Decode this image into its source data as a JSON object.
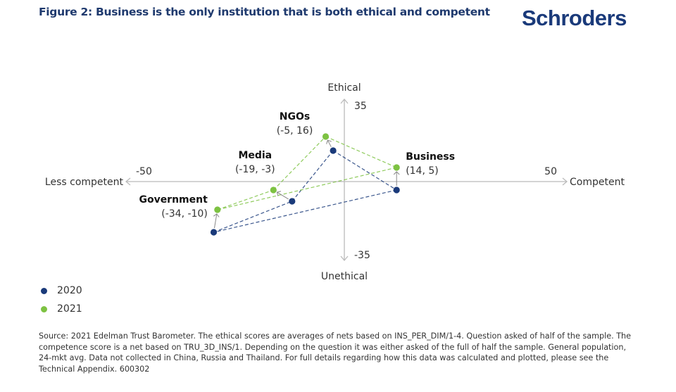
{
  "header": {
    "title": "Figure 2: Business is the only institution that is both ethical and competent",
    "logo": "Schroders"
  },
  "colors": {
    "series_2020": "#1a3a7a",
    "series_2021": "#7dc242",
    "axis": "#bbbbbb",
    "title": "#1f3a6e"
  },
  "chart_data": {
    "type": "scatter",
    "title": "Figure 2: Business is the only institution that is both ethical and competent",
    "xlabel_positive": "Competent",
    "xlabel_negative": "Less competent",
    "ylabel_positive": "Ethical",
    "ylabel_negative": "Unethical",
    "xlim": [
      -50,
      50
    ],
    "ylim": [
      -35,
      35
    ],
    "x_ticks": [
      "-50",
      "50"
    ],
    "y_ticks": [
      "35",
      "-35"
    ],
    "grid": false,
    "legend": {
      "position": "bottom-left",
      "entries": [
        "2020",
        "2021"
      ]
    },
    "series": [
      {
        "name": "2020",
        "points": [
          {
            "label": "Government",
            "x": -35,
            "y": -18
          },
          {
            "label": "Media",
            "x": -14,
            "y": -7
          },
          {
            "label": "NGOs",
            "x": -3,
            "y": 11
          },
          {
            "label": "Business",
            "x": 14,
            "y": -3
          }
        ]
      },
      {
        "name": "2021",
        "points": [
          {
            "label": "Government",
            "x": -34,
            "y": -10
          },
          {
            "label": "Media",
            "x": -19,
            "y": -3
          },
          {
            "label": "NGOs",
            "x": -5,
            "y": 16
          },
          {
            "label": "Business",
            "x": 14,
            "y": 5
          }
        ]
      }
    ],
    "annotations": [
      {
        "name": "NGOs",
        "coords": "(-5, 16)"
      },
      {
        "name": "Media",
        "coords": "(-19, -3)"
      },
      {
        "name": "Business",
        "coords": "(14, 5)"
      },
      {
        "name": "Government",
        "coords": "(-34, -10)"
      }
    ]
  },
  "footer": {
    "source": "Source: 2021 Edelman Trust Barometer. The ethical scores are averages of nets based on INS_PER_DIM/1-4. Question asked of half of the sample. The competence score is a net based on TRU_3D_INS/1. Depending on the question it was either asked of the full of half the sample. General population, 24-mkt avg. Data not collected in China, Russia and Thailand. For full details regarding how this data was calculated and plotted, please see the Technical Appendix. 600302"
  }
}
